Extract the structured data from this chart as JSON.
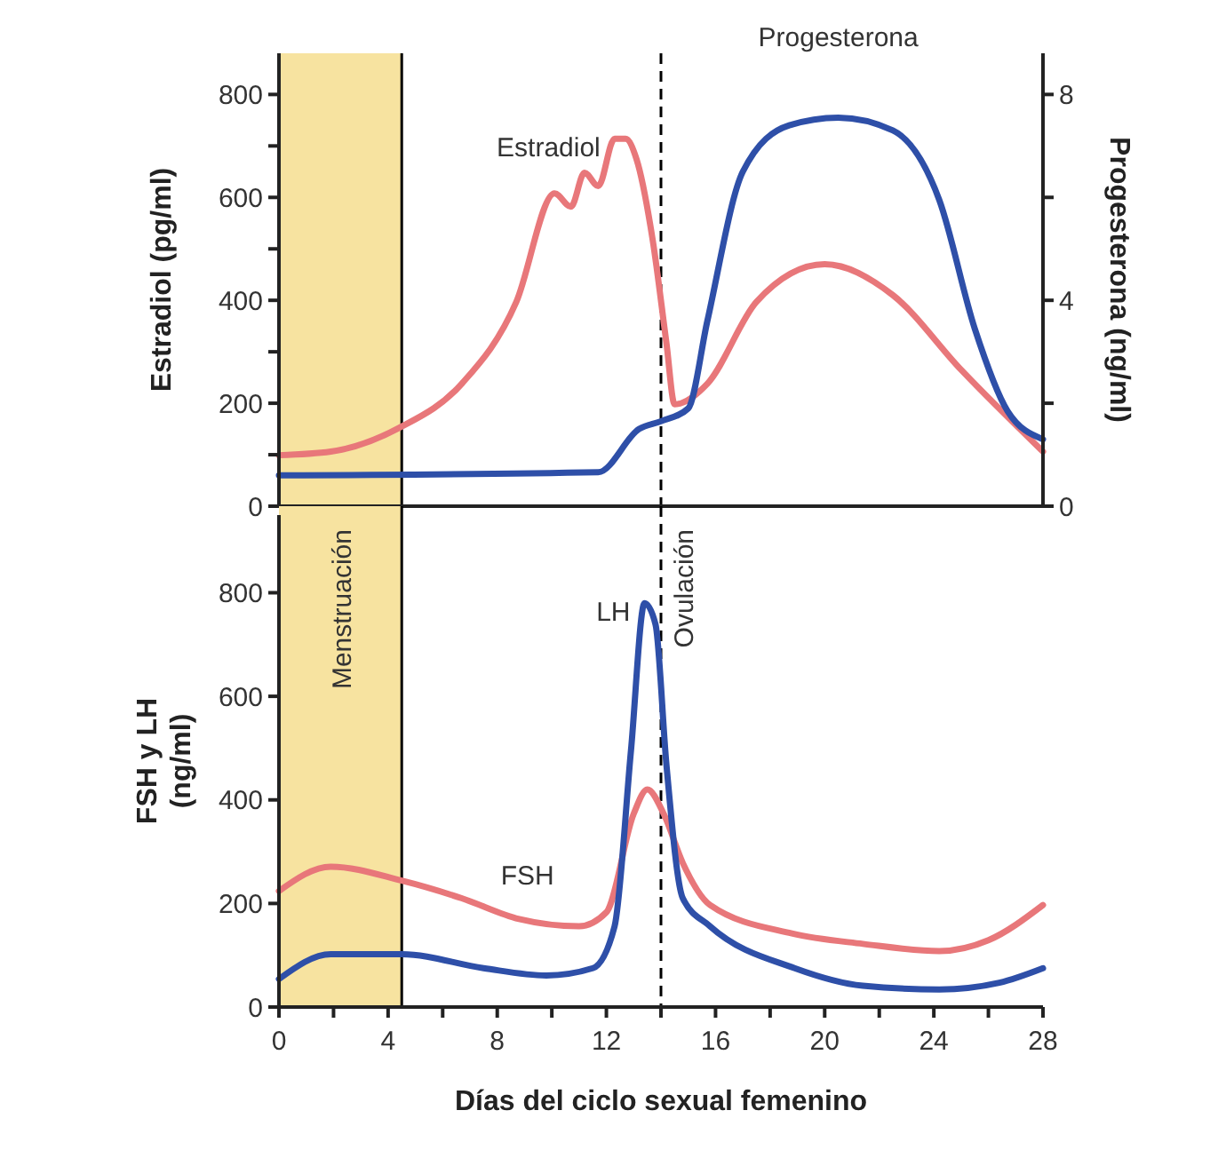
{
  "chart_data": [
    {
      "type": "line",
      "xlim": [
        0,
        28
      ],
      "ylim": [
        0,
        880
      ],
      "yticks": [
        0,
        {
          "value": 100,
          "label": null
        },
        200,
        {
          "value": 300,
          "label": null
        },
        400,
        {
          "value": 500,
          "label": null
        },
        600,
        {
          "value": 700,
          "label": null
        },
        800
      ],
      "y2lim": [
        0,
        8.8
      ],
      "y2ticks": [
        0,
        {
          "value": 2,
          "label": null
        },
        4,
        {
          "value": 6,
          "label": null
        },
        8
      ],
      "ylabel": "Estradiol (pg/ml)",
      "y2label": "Progesterona (ng/ml)",
      "tick_labels": "y",
      "grid": false,
      "marker": "none",
      "line_style": "solid",
      "bands": [
        {
          "axis": "x",
          "from": 0,
          "to": 4.5,
          "color": "#f7e3a0"
        }
      ],
      "ref_lines": [
        {
          "axis": "x",
          "value": 4.5,
          "color": "#000000",
          "line_style": "solid"
        },
        {
          "axis": "x",
          "value": 14,
          "color": "#000000",
          "line_style": "dashed"
        }
      ],
      "series": [
        {
          "name": "Estradiol",
          "color": "#e8777a",
          "x": [
            0,
            1.9,
            4.4,
            6.7,
            8.7,
            10.1,
            10.7,
            11.2,
            11.7,
            12.3,
            12.7,
            13.1,
            13.7,
            14.2,
            14.5,
            15.7,
            17.5,
            20,
            22.5,
            25,
            28
          ],
          "values": [
            99,
            106,
            152,
            238,
            397,
            608,
            582,
            648,
            622,
            714,
            714,
            675,
            516,
            317,
            198,
            238,
            397,
            470,
            410,
            265,
            106
          ]
        },
        {
          "name": "Progesterona",
          "color": "#2e4fa8",
          "axis": "y2",
          "x": [
            0,
            11.7,
            13.2,
            14,
            15,
            15.7,
            17,
            18.7,
            20.5,
            22.5,
            24.2,
            25.5,
            26.7,
            28
          ],
          "values": [
            0.6,
            0.66,
            1.5,
            1.65,
            1.9,
            3.6,
            6.5,
            7.4,
            7.55,
            7.3,
            5.95,
            3.45,
            1.85,
            1.3
          ]
        }
      ]
    },
    {
      "type": "line",
      "xlim": [
        0,
        28
      ],
      "ylim": [
        0,
        950
      ],
      "xticks": [
        0,
        {
          "value": 2,
          "label": null
        },
        4,
        {
          "value": 6,
          "label": null
        },
        8,
        {
          "value": 10,
          "label": null
        },
        12,
        {
          "value": 14,
          "label": null
        },
        16,
        {
          "value": 18,
          "label": null
        },
        20,
        {
          "value": 22,
          "label": null
        },
        24,
        {
          "value": 26,
          "label": null
        },
        28
      ],
      "yticks": [
        0,
        200,
        400,
        600,
        800
      ],
      "ylabel": "FSH y LH\n(ng/ml)",
      "xlabel": "Días del ciclo sexual femenino",
      "grid": false,
      "marker": "none",
      "line_style": "solid",
      "bands": [
        {
          "axis": "x",
          "from": 0,
          "to": 4.5,
          "color": "#f7e3a0",
          "label": "Menstruación"
        }
      ],
      "ref_lines": [
        {
          "axis": "x",
          "value": 4.5,
          "color": "#000000",
          "line_style": "solid"
        },
        {
          "axis": "x",
          "value": 14,
          "color": "#000000",
          "line_style": "dashed",
          "label": "Ovulación"
        }
      ],
      "series": [
        {
          "name": "FSH",
          "color": "#e8777a",
          "x": [
            0,
            1.9,
            4.5,
            6.7,
            8.8,
            11,
            12,
            13,
            13.5,
            14.1,
            14.8,
            15.8,
            18.8,
            21.4,
            24.2,
            26,
            28
          ],
          "values": [
            224,
            271,
            244,
            210,
            170,
            156,
            183,
            373,
            420,
            373,
            278,
            197,
            142,
            122,
            108,
            129,
            197
          ]
        },
        {
          "name": "LH",
          "color": "#2e4fa8",
          "x": [
            0,
            1.9,
            4.5,
            7.5,
            9.8,
            11.5,
            12.3,
            12.9,
            13.4,
            13.8,
            14.2,
            14.8,
            15.8,
            18.9,
            21.4,
            24.2,
            26.4,
            28
          ],
          "values": [
            54,
            102,
            102,
            75,
            61,
            75,
            156,
            495,
            780,
            739,
            468,
            210,
            156,
            75,
            41,
            34,
            47,
            75
          ]
        }
      ]
    }
  ]
}
